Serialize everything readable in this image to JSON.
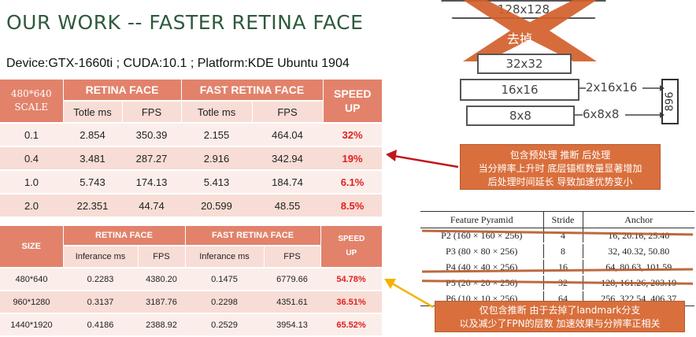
{
  "title": "OUR WORK -- FASTER RETINA FACE",
  "subtitle": "Device:GTX-1660ti ; CUDA:10.1 ; Platform:KDE Ubuntu 1904",
  "table1": {
    "corner_line1": "480*640",
    "corner_line2": "SCALE",
    "group1": "RETINA FACE",
    "group2": "FAST RETINA FACE",
    "speed_line1": "SPEED",
    "speed_line2": "UP",
    "sub": [
      "Totle ms",
      "FPS",
      "Totle ms",
      "FPS"
    ],
    "rows": [
      {
        "scale": "0.1",
        "rf_ms": "2.854",
        "rf_fps": "350.39",
        "frf_ms": "2.155",
        "frf_fps": "464.04",
        "speed": "32%"
      },
      {
        "scale": "0.4",
        "rf_ms": "3.481",
        "rf_fps": "287.27",
        "frf_ms": "2.916",
        "frf_fps": "342.94",
        "speed": "19%"
      },
      {
        "scale": "1.0",
        "rf_ms": "5.743",
        "rf_fps": "174.13",
        "frf_ms": "5.413",
        "frf_fps": "184.74",
        "speed": "6.1%"
      },
      {
        "scale": "2.0",
        "rf_ms": "22.351",
        "rf_fps": "44.74",
        "frf_ms": "20.599",
        "frf_fps": "48.55",
        "speed": "8.5%"
      }
    ]
  },
  "table2": {
    "corner": "SIZE",
    "group1": "RETINA FACE",
    "group2": "FAST RETINA FACE",
    "speed_line1": "SPEED",
    "speed_line2": "UP",
    "sub": [
      "Inferance ms",
      "FPS",
      "Inferance ms",
      "FPS"
    ],
    "rows": [
      {
        "size": "480*640",
        "rf_ms": "0.2283",
        "rf_fps": "4380.20",
        "frf_ms": "0.1475",
        "frf_fps": "6779.66",
        "speed": "54.78%"
      },
      {
        "size": "960*1280",
        "rf_ms": "0.3137",
        "rf_fps": "3187.76",
        "frf_ms": "0.2298",
        "frf_fps": "4351.61",
        "speed": "36.51%"
      },
      {
        "size": "1440*1920",
        "rf_ms": "0.4186",
        "rf_fps": "2388.92",
        "frf_ms": "0.2529",
        "frf_fps": "3954.13",
        "speed": "65.52%"
      }
    ]
  },
  "diagram": {
    "layer_top": "128x128",
    "removed_label": "去掉",
    "layer_32": "32x32",
    "layer_16": "16x16",
    "layer_8": "8x8",
    "out_16": "2x16x16",
    "out_8": "6x8x8",
    "outbox": "896"
  },
  "note1": {
    "line1": "包含预处理 推断 后处理",
    "line2": "当分辨率上升时 底层锚框数量显著增加",
    "line3": "后处理时间延长 导致加速优势变小"
  },
  "note2": {
    "line1": "仅包含推断 由于去掉了landmark分支",
    "line2": "以及减少了FPN的层数 加速效果与分辨率正相关"
  },
  "anchor_table": {
    "headers": [
      "Feature Pyramid",
      "Stride",
      "Anchor"
    ],
    "rows": [
      {
        "pyramid": "P2 (160 × 160 × 256)",
        "stride": "4",
        "anchor": "16, 20.16, 25.40"
      },
      {
        "pyramid": "P3 (80 × 80 × 256)",
        "stride": "8",
        "anchor": "32, 40.32, 50.80"
      },
      {
        "pyramid": "P4 (40 × 40 × 256)",
        "stride": "16",
        "anchor": "64, 80.63, 101.59"
      },
      {
        "pyramid": "P5 (20 × 20 × 256)",
        "stride": "32",
        "anchor": "128, 161.26, 203.19"
      },
      {
        "pyramid": "P6 (10 × 10 × 256)",
        "stride": "64",
        "anchor": "256, 322.54, 406.37"
      }
    ]
  },
  "colors": {
    "header_bg": "#e2826b",
    "row_light": "#fbeeea",
    "row_dark": "#f7ddd6",
    "speed_text": "#e0201f",
    "note_bg": "#d96f3c",
    "title_green": "#2f5a3d",
    "arrow_red": "#c0171b",
    "arrow_yellow": "#f2b400"
  }
}
